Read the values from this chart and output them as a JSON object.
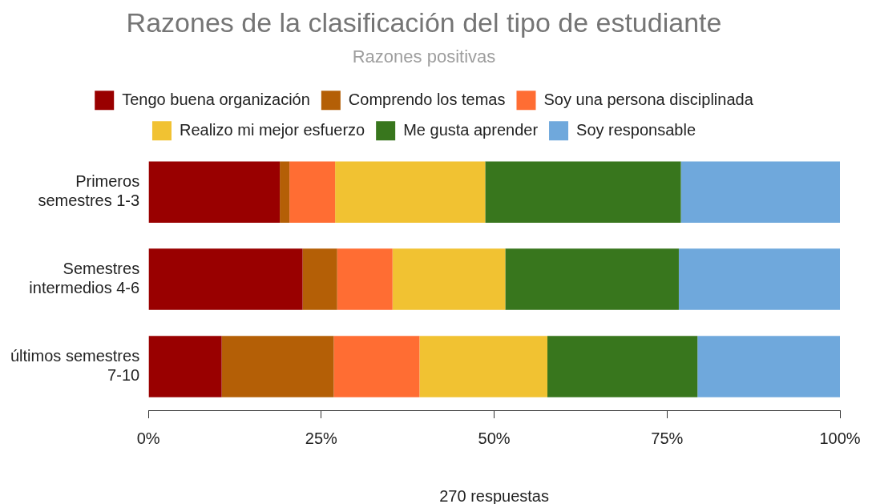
{
  "chart_data": {
    "type": "bar",
    "orientation": "horizontal",
    "stacked": true,
    "title": "Razones de la clasificación del tipo de estudiante",
    "subtitle": "Razones positivas",
    "categories": [
      "Primeros semestres 1-3",
      "Semestres intermedios 4-6",
      "últimos semestres 7-10"
    ],
    "series": [
      {
        "name": "Tengo buena organización",
        "color": "#990000",
        "values": [
          19,
          22.3,
          10.6
        ]
      },
      {
        "name": "Comprendo los temas",
        "color": "#b45f06",
        "values": [
          1.4,
          5,
          16.2
        ]
      },
      {
        "name": "Soy una persona disciplinada",
        "color": "#ff6d33",
        "values": [
          6.6,
          8,
          12.4
        ]
      },
      {
        "name": "Realizo mi mejor esfuerzo",
        "color": "#f1c232",
        "values": [
          21.7,
          16.3,
          18.5
        ]
      },
      {
        "name": "Me gusta aprender",
        "color": "#38761d",
        "values": [
          28.3,
          25.1,
          21.7
        ]
      },
      {
        "name": "Soy responsable",
        "color": "#6fa8dc",
        "values": [
          23,
          23.3,
          20.6
        ]
      }
    ],
    "xlim": [
      0,
      100
    ],
    "xticks": [
      {
        "value": 0,
        "label": "0%"
      },
      {
        "value": 25,
        "label": "25%"
      },
      {
        "value": 50,
        "label": "50%"
      },
      {
        "value": 75,
        "label": "75%"
      },
      {
        "value": 100,
        "label": "100%"
      }
    ],
    "grid": false,
    "legend": "top",
    "annotations": [
      "270 respuestas"
    ]
  }
}
